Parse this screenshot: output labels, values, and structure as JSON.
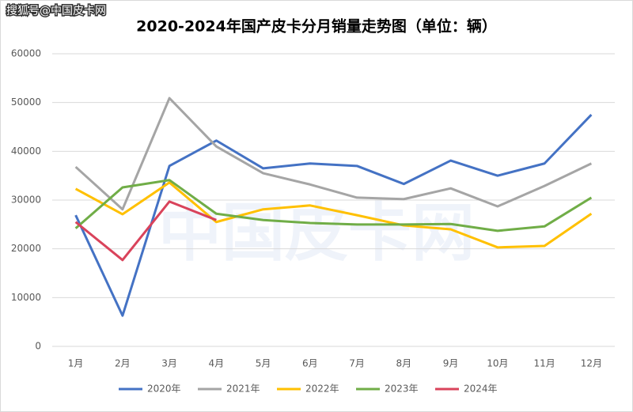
{
  "watermark": "搜狐号@中国皮卡网",
  "background_watermark": "中国皮卡网",
  "chart_data": {
    "type": "line",
    "title": "2020-2024年国产皮卡分月销量走势图（单位：辆）",
    "categories": [
      "1月",
      "2月",
      "3月",
      "4月",
      "5月",
      "6月",
      "7月",
      "8月",
      "9月",
      "10月",
      "11月",
      "12月"
    ],
    "series": [
      {
        "name": "2020年",
        "color": "#4472c4",
        "values": [
          26900,
          6300,
          37000,
          42200,
          36500,
          37500,
          37000,
          33300,
          38100,
          35000,
          37500,
          47500
        ]
      },
      {
        "name": "2021年",
        "color": "#a5a5a5",
        "values": [
          36800,
          28100,
          50900,
          41000,
          35500,
          33200,
          30500,
          30200,
          32400,
          28700,
          32900,
          37500
        ]
      },
      {
        "name": "2022年",
        "color": "#ffc000",
        "values": [
          32300,
          27100,
          33600,
          25500,
          28100,
          28900,
          26900,
          24800,
          24000,
          20300,
          20600,
          27200
        ]
      },
      {
        "name": "2023年",
        "color": "#70ad47",
        "values": [
          24200,
          32600,
          34100,
          27200,
          25900,
          25300,
          25000,
          25000,
          25100,
          23700,
          24600,
          30500
        ]
      },
      {
        "name": "2024年",
        "color": "#d9435b",
        "values": [
          25500,
          17700,
          29700,
          25900,
          null,
          null,
          null,
          null,
          null,
          null,
          null,
          null
        ]
      }
    ],
    "ylim": [
      0,
      60000
    ],
    "yticks": [
      0,
      10000,
      20000,
      30000,
      40000,
      50000,
      60000
    ],
    "grid": true,
    "legend": "bottom"
  }
}
